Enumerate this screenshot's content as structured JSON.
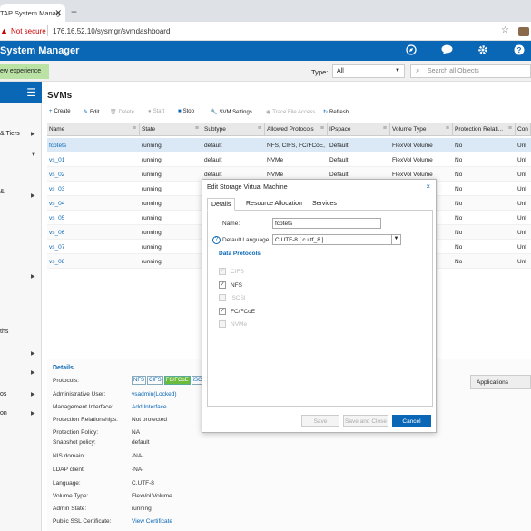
{
  "browser": {
    "tab_title": "TAP System Manag",
    "new_tab": "+",
    "not_secure": "Not secure",
    "url": "176.16.52.10/sysmgr/svmdashboard"
  },
  "header": {
    "title": "System Manager"
  },
  "subbar": {
    "new_experience": "ew experience",
    "type_label": "Type:",
    "type_value": "All",
    "search_placeholder": "Search all Objects"
  },
  "sidebar": {
    "items": [
      {
        "label": "& Tiers"
      },
      {
        "label": "&"
      },
      {
        "label": "ths"
      },
      {
        "label": "os"
      },
      {
        "label": "on"
      }
    ]
  },
  "main": {
    "title": "SVMs",
    "toolbar": {
      "create": "Create",
      "edit": "Edit",
      "delete": "Delete",
      "start": "Start",
      "stop": "Stop",
      "svm_settings": "SVM Settings",
      "trace_file_access": "Trace File Access",
      "refresh": "Refresh"
    },
    "columns": [
      "Name",
      "State",
      "Subtype",
      "Allowed Protocols",
      "IPspace",
      "Volume Type",
      "Protection Relati...",
      "Con"
    ],
    "rows": [
      {
        "name": "fcptets",
        "state": "running",
        "subtype": "default",
        "protocols": "NFS, CIFS, FC/FCoE, i...",
        "ipspace": "Default",
        "voltype": "FlexVol Volume",
        "protection": "No",
        "con": "Unl"
      },
      {
        "name": "vs_01",
        "state": "running",
        "subtype": "default",
        "protocols": "NVMe",
        "ipspace": "Default",
        "voltype": "FlexVol Volume",
        "protection": "No",
        "con": "Unl"
      },
      {
        "name": "vs_02",
        "state": "running",
        "subtype": "default",
        "protocols": "NVMe",
        "ipspace": "Default",
        "voltype": "FlexVol Volume",
        "protection": "No",
        "con": "Unl"
      },
      {
        "name": "vs_03",
        "state": "running",
        "subtype": "",
        "protocols": "",
        "ipspace": "",
        "voltype": "",
        "protection": "No",
        "con": "Unl"
      },
      {
        "name": "vs_04",
        "state": "running",
        "subtype": "",
        "protocols": "",
        "ipspace": "",
        "voltype": "",
        "protection": "No",
        "con": "Unl"
      },
      {
        "name": "vs_05",
        "state": "running",
        "subtype": "",
        "protocols": "",
        "ipspace": "",
        "voltype": "",
        "protection": "No",
        "con": "Unl"
      },
      {
        "name": "vs_06",
        "state": "running",
        "subtype": "",
        "protocols": "",
        "ipspace": "",
        "voltype": "",
        "protection": "No",
        "con": "Unl"
      },
      {
        "name": "vs_07",
        "state": "running",
        "subtype": "",
        "protocols": "",
        "ipspace": "",
        "voltype": "",
        "protection": "No",
        "con": "Unl"
      },
      {
        "name": "vs_08",
        "state": "running",
        "subtype": "",
        "protocols": "",
        "ipspace": "",
        "voltype": "",
        "protection": "No",
        "con": "Unl"
      }
    ]
  },
  "details": {
    "title": "Details",
    "protocols_label": "Protocols:",
    "protocol_tags": [
      {
        "label": "NFS",
        "on": false
      },
      {
        "label": "CIFS",
        "on": false
      },
      {
        "label": "FC/FCoE",
        "on": true
      },
      {
        "label": "iSCSI",
        "on": false
      }
    ],
    "fields": [
      {
        "label": "Administrative User:",
        "value": "vsadmin(Locked)",
        "link": true
      },
      {
        "label": "Management Interface:",
        "value": "Add Interface",
        "link": true
      },
      {
        "label": "Protection Relationships:",
        "value": "Not protected",
        "link": false
      },
      {
        "label": "Protection Policy:",
        "value": "NA",
        "link": false
      },
      {
        "label": "Snapshot policy:",
        "value": "default",
        "link": false
      },
      {
        "label": "NIS domain:",
        "value": "-NA-",
        "link": false
      },
      {
        "label": "LDAP client:",
        "value": "-NA-",
        "link": false
      },
      {
        "label": "Language:",
        "value": "C.UTF-8",
        "link": false
      },
      {
        "label": "Volume Type:",
        "value": "FlexVol Volume",
        "link": false
      },
      {
        "label": "Admin State:",
        "value": "running",
        "link": false
      },
      {
        "label": "Public SSL Certificate:",
        "value": "View Certificate",
        "link": true
      }
    ],
    "applications_header": "Applications"
  },
  "dialog": {
    "title": "Edit Storage Virtual Machine",
    "close": "×",
    "tabs": [
      "Details",
      "Resource Allocation",
      "Services"
    ],
    "name_label": "Name:",
    "name_value": "fcptets",
    "language_label": "Default Language:",
    "language_value": "C.UTF-8 [ c.utf_8 ]",
    "data_protocols_title": "Data Protocols",
    "protocols": [
      {
        "label": "CIFS",
        "checked": true,
        "disabled": true
      },
      {
        "label": "NFS",
        "checked": true,
        "disabled": false
      },
      {
        "label": "iSCSI",
        "checked": false,
        "disabled": true
      },
      {
        "label": "FC/FCoE",
        "checked": true,
        "disabled": false
      },
      {
        "label": "NVMe",
        "checked": false,
        "disabled": true
      }
    ],
    "buttons": {
      "save": "Save",
      "save_close": "Save and Close",
      "cancel": "Cancel"
    }
  }
}
